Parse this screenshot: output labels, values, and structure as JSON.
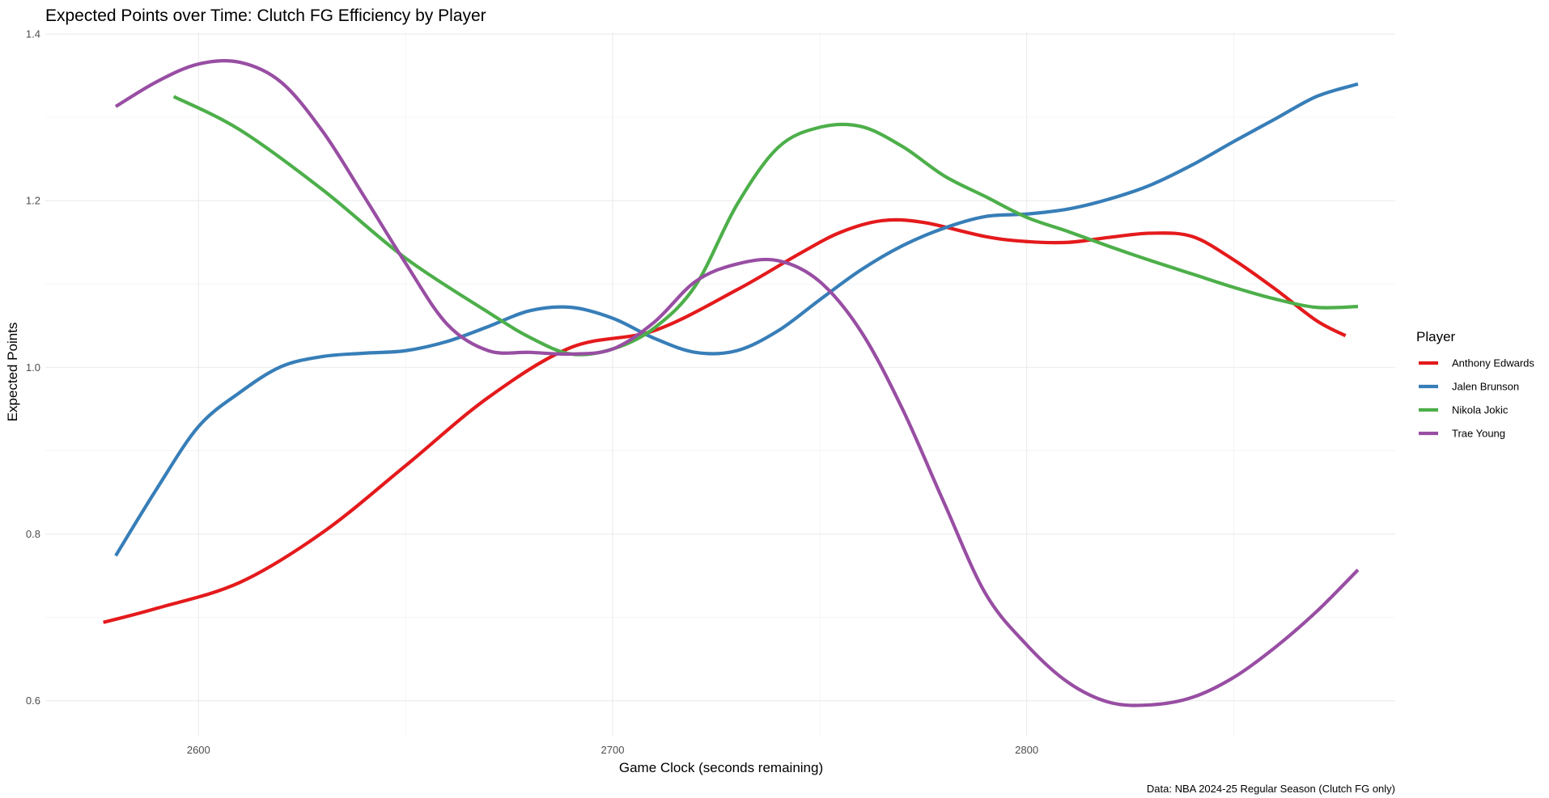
{
  "chart_data": {
    "type": "line",
    "title": "Expected Points over Time: Clutch FG Efficiency by Player",
    "xlabel": "Game Clock (seconds remaining)",
    "ylabel": "Expected Points",
    "caption": "Data: NBA 2024-25 Regular Season (Clutch FG only)",
    "xlim": [
      2563,
      2889
    ],
    "ylim": [
      0.557,
      1.402
    ],
    "x_ticks": [
      2600,
      2700,
      2800
    ],
    "x_tick_labels": [
      "2600",
      "2700",
      "2800"
    ],
    "x_minor_ticks": [
      2650,
      2750,
      2850
    ],
    "y_ticks": [
      0.6,
      0.8,
      1.0,
      1.2,
      1.4
    ],
    "y_tick_labels": [
      "0.6",
      "0.8",
      "1.0",
      "1.2",
      "1.4"
    ],
    "y_minor_ticks": [
      0.7,
      0.9,
      1.1,
      1.3
    ],
    "grid": true,
    "legend": {
      "title": "Player",
      "position": "right"
    },
    "series": [
      {
        "name": "Anthony Edwards",
        "color": "#E41A1C",
        "x": [
          2577,
          2590,
          2610,
          2630,
          2650,
          2670,
          2690,
          2710,
          2730,
          2745,
          2755,
          2765,
          2775,
          2790,
          2800,
          2810,
          2820,
          2830,
          2840,
          2850,
          2860,
          2870,
          2877
        ],
        "y": [
          0.694,
          0.711,
          0.742,
          0.802,
          0.882,
          0.964,
          1.024,
          1.044,
          1.093,
          1.136,
          1.162,
          1.176,
          1.174,
          1.157,
          1.151,
          1.15,
          1.156,
          1.161,
          1.157,
          1.129,
          1.094,
          1.056,
          1.038
        ]
      },
      {
        "name": "Jalen Brunson",
        "color": "#377EB8",
        "x": [
          2580,
          2590,
          2600,
          2610,
          2620,
          2630,
          2640,
          2650,
          2660,
          2670,
          2680,
          2690,
          2700,
          2710,
          2720,
          2730,
          2740,
          2750,
          2760,
          2770,
          2780,
          2790,
          2800,
          2810,
          2820,
          2830,
          2840,
          2850,
          2860,
          2870,
          2880
        ],
        "y": [
          0.774,
          0.855,
          0.929,
          0.97,
          1.001,
          1.013,
          1.017,
          1.02,
          1.031,
          1.049,
          1.068,
          1.072,
          1.059,
          1.035,
          1.018,
          1.02,
          1.044,
          1.081,
          1.117,
          1.146,
          1.167,
          1.181,
          1.184,
          1.19,
          1.202,
          1.219,
          1.243,
          1.271,
          1.298,
          1.325,
          1.34
        ]
      },
      {
        "name": "Nikola Jokic",
        "color": "#4DAF4A",
        "x": [
          2594,
          2610,
          2630,
          2650,
          2670,
          2680,
          2690,
          2700,
          2710,
          2720,
          2730,
          2740,
          2750,
          2760,
          2770,
          2780,
          2790,
          2800,
          2810,
          2820,
          2830,
          2840,
          2850,
          2860,
          2870,
          2880
        ],
        "y": [
          1.325,
          1.285,
          1.213,
          1.131,
          1.066,
          1.036,
          1.016,
          1.022,
          1.047,
          1.098,
          1.195,
          1.264,
          1.288,
          1.289,
          1.265,
          1.23,
          1.205,
          1.18,
          1.163,
          1.145,
          1.128,
          1.112,
          1.096,
          1.082,
          1.072,
          1.073
        ]
      },
      {
        "name": "Trae Young",
        "color": "#984EA3",
        "x": [
          2580,
          2590,
          2600,
          2610,
          2620,
          2630,
          2640,
          2650,
          2660,
          2670,
          2680,
          2690,
          2700,
          2710,
          2720,
          2730,
          2740,
          2750,
          2760,
          2770,
          2780,
          2790,
          2800,
          2810,
          2820,
          2830,
          2840,
          2850,
          2860,
          2870,
          2880
        ],
        "y": [
          1.313,
          1.343,
          1.364,
          1.366,
          1.342,
          1.283,
          1.205,
          1.125,
          1.052,
          1.02,
          1.018,
          1.016,
          1.022,
          1.054,
          1.103,
          1.124,
          1.128,
          1.103,
          1.043,
          0.95,
          0.838,
          0.729,
          0.667,
          0.622,
          0.598,
          0.595,
          0.604,
          0.628,
          0.664,
          0.707,
          0.757
        ]
      }
    ]
  }
}
